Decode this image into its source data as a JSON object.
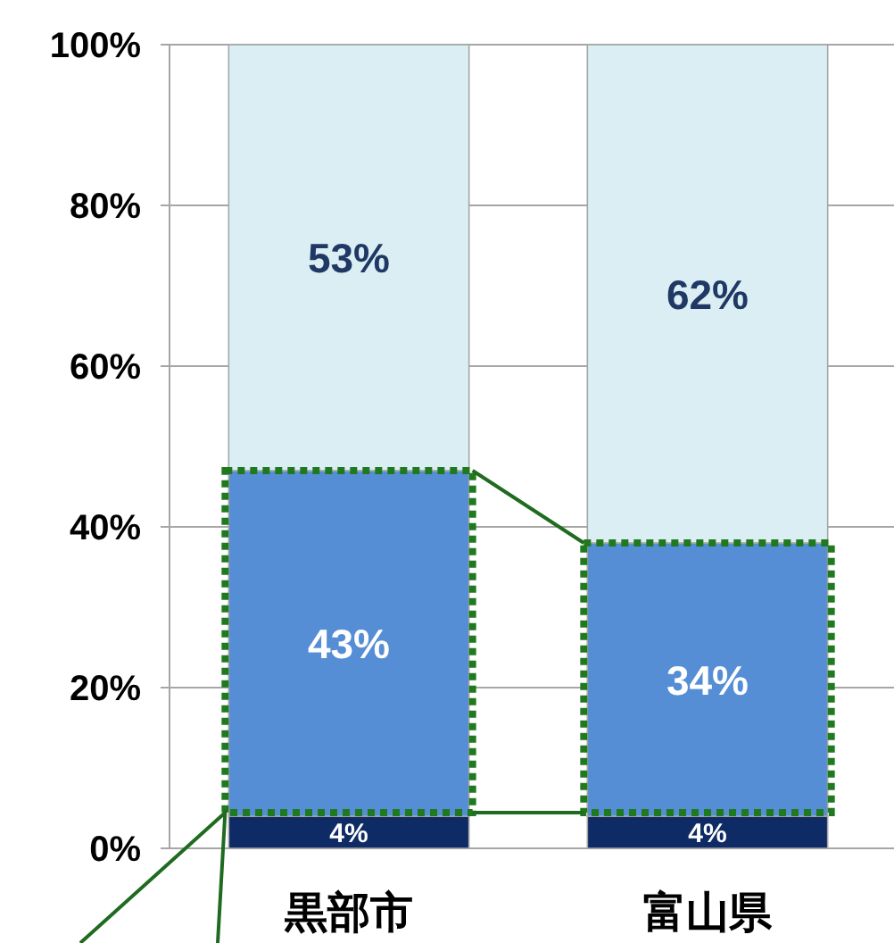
{
  "chart_data": {
    "type": "bar",
    "stacked": true,
    "categories": [
      "黒部市",
      "富山県"
    ],
    "series": [
      {
        "color": "#0f2b66",
        "values": [
          4,
          4
        ],
        "value_labels": [
          "4%",
          "4%"
        ]
      },
      {
        "color": "#558ed5",
        "values": [
          43,
          34
        ],
        "value_labels": [
          "43%",
          "34%"
        ]
      },
      {
        "color": "#dbeef4",
        "values": [
          53,
          62
        ],
        "value_labels": [
          "53%",
          "62%"
        ]
      }
    ],
    "ylim": [
      0,
      100
    ],
    "yticks": [
      {
        "value": 0,
        "label": "0%"
      },
      {
        "value": 20,
        "label": "20%"
      },
      {
        "value": 40,
        "label": "40%"
      },
      {
        "value": 60,
        "label": "60%"
      },
      {
        "value": 80,
        "label": "80%"
      },
      {
        "value": 100,
        "label": "100%"
      }
    ],
    "grid": "y"
  }
}
